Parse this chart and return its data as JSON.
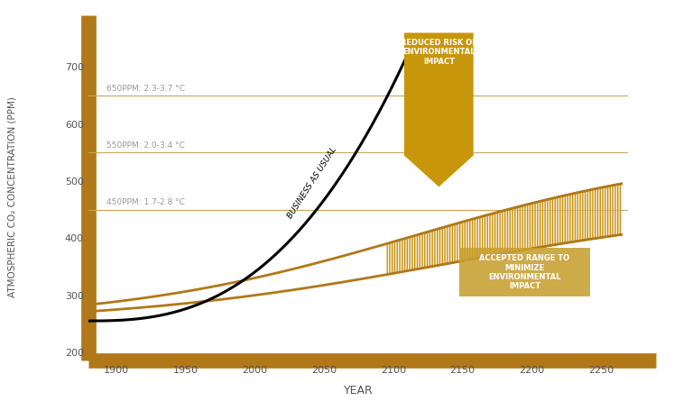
{
  "xlabel": "YEAR",
  "ylabel": "ATMOSPHERIC CO₂ CONCENTRATION (PPM)",
  "xlim": [
    1880,
    2270
  ],
  "ylim": [
    185,
    760
  ],
  "yticks": [
    200,
    300,
    400,
    500,
    600,
    700
  ],
  "xticks": [
    1900,
    1950,
    2000,
    2050,
    2100,
    2150,
    2200,
    2250
  ],
  "hline_650": 650,
  "hline_550": 550,
  "hline_450": 450,
  "label_650": "650PPM: 2.3-3.7 °C",
  "label_550": "550PPM: 2.0-3.4 °C",
  "label_450": "450PPM: 1.7-2.8 °C",
  "hline_color": "#C8A855",
  "background_color": "#FFFFFF",
  "business_usual_label": "BUSINESS AS USUAL",
  "reduced_risk_label": "REDUCED RISK OF\nENVIRONMENTAL\nIMPACT",
  "accepted_range_label": "ACCEPTED RANGE TO\nMINIMIZE\nENVIRONMENTAL\nIMPACT",
  "gold_color": "#B07818",
  "arrow_fill_color": "#C8960A",
  "hatch_edge_color": "#C8920A",
  "pale_fill_color": "#F5E6D0",
  "accepted_box_color": "#C8A030",
  "spine_lw": 12
}
